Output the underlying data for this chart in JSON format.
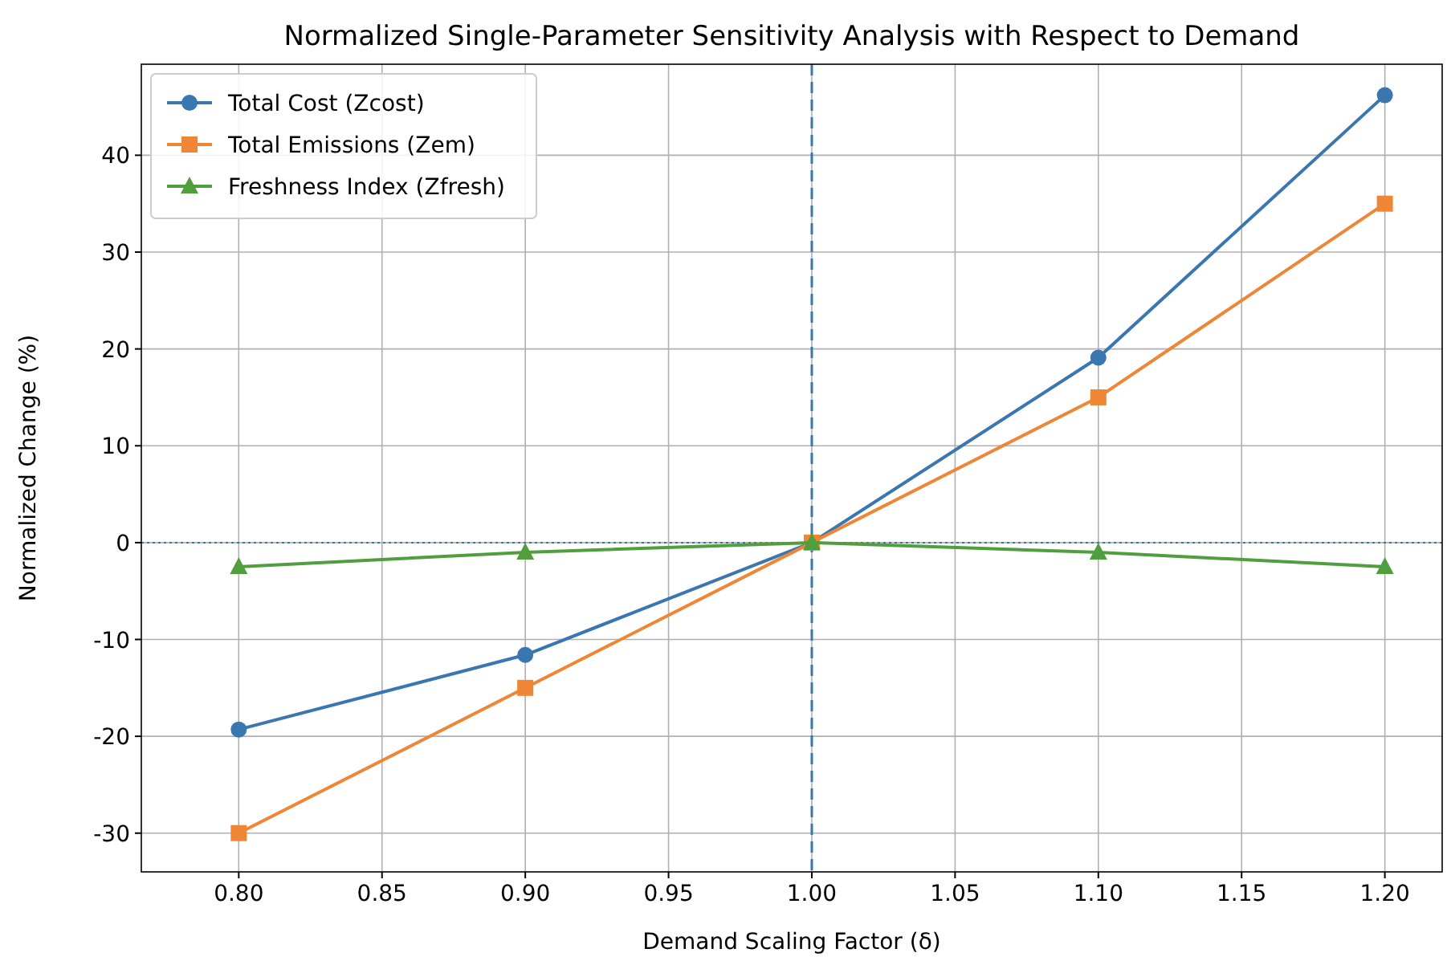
{
  "chart_data": {
    "type": "line",
    "title": "Normalized Single-Parameter Sensitivity Analysis with Respect to Demand",
    "xlabel": "Demand Scaling Factor (δ)",
    "ylabel": "Normalized Change (%)",
    "x": [
      0.8,
      0.9,
      1.0,
      1.1,
      1.2
    ],
    "series": [
      {
        "name": "Total Cost (Zcost)",
        "color": "#3a76af",
        "marker": "circle",
        "values": [
          -19.3,
          -11.6,
          0,
          19.1,
          46.2
        ]
      },
      {
        "name": "Total Emissions (Zem)",
        "color": "#ef8636",
        "marker": "square",
        "values": [
          -30,
          -15,
          0,
          15,
          35
        ]
      },
      {
        "name": "Freshness Index (Zfresh)",
        "color": "#519e3e",
        "marker": "triangle",
        "values": [
          -2.5,
          -1,
          0,
          -1,
          -2.5
        ]
      }
    ],
    "xlim": [
      0.766,
      1.22
    ],
    "xticks": [
      {
        "value": 0.8,
        "label": "0.80"
      },
      {
        "value": 0.85,
        "label": "0.85"
      },
      {
        "value": 0.9,
        "label": "0.90"
      },
      {
        "value": 0.95,
        "label": "0.95"
      },
      {
        "value": 1.0,
        "label": "1.00"
      },
      {
        "value": 1.05,
        "label": "1.05"
      },
      {
        "value": 1.1,
        "label": "1.10"
      },
      {
        "value": 1.15,
        "label": "1.15"
      },
      {
        "value": 1.2,
        "label": "1.20"
      }
    ],
    "ylim": [
      -34,
      49.4
    ],
    "yticks": [
      -30,
      -20,
      -10,
      0,
      10,
      20,
      30,
      40
    ],
    "ref_lines": [
      {
        "axis": "x",
        "value": 1.0,
        "color": "#3a76af",
        "line_style": "dashed"
      },
      {
        "axis": "y",
        "value": 0,
        "color": "#3a76af",
        "line_style": "dotted"
      }
    ],
    "grid": true,
    "legend": "top left",
    "line_style": "solid"
  }
}
